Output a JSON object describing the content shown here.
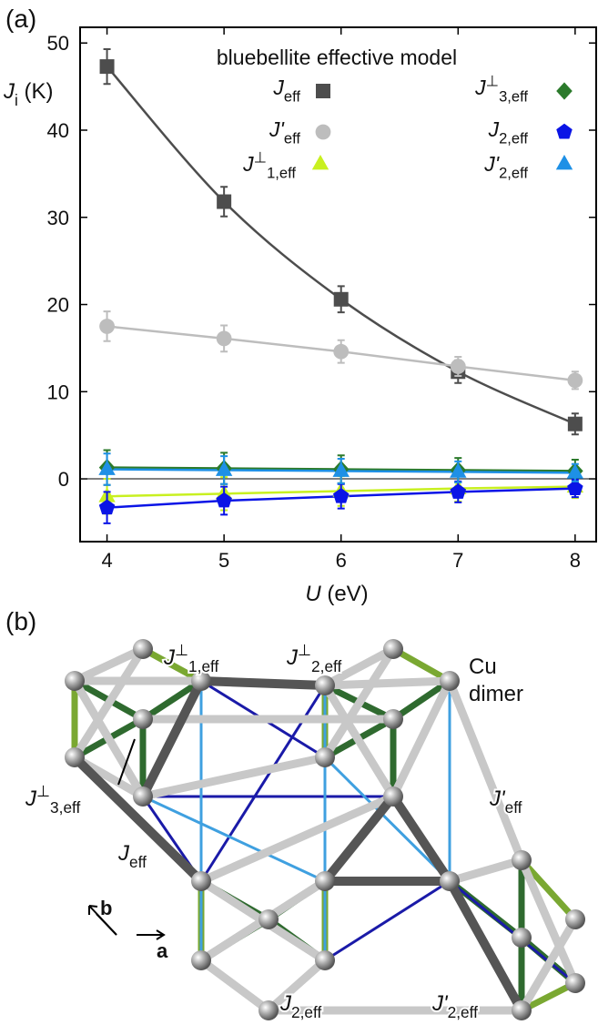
{
  "chart_data": {
    "type": "line",
    "panel_label": "(a)",
    "title": "bluebellite effective model",
    "xlabel": {
      "base": "U",
      "rest": " (eV)"
    },
    "ylabel": {
      "base": "J",
      "sub": "i",
      "rest": " (K)"
    },
    "x": [
      4,
      5,
      6,
      7,
      8
    ],
    "xlim": [
      3.77,
      8.18
    ],
    "ylim": [
      -7.2,
      51.8
    ],
    "xticks": [
      4,
      5,
      6,
      7,
      8
    ],
    "yticks": [
      0,
      10,
      20,
      30,
      40,
      50
    ],
    "zero_line": true,
    "series": [
      {
        "name": {
          "base": "J",
          "sub": "eff"
        },
        "color": "#4d4d4d",
        "marker": "square",
        "smooth": true,
        "values": [
          47.3,
          31.8,
          20.6,
          12.3,
          6.3
        ],
        "errors": [
          2.0,
          1.7,
          1.5,
          1.3,
          1.2
        ]
      },
      {
        "name": {
          "base": "J'",
          "sub": "eff"
        },
        "color": "#bdbdbd",
        "marker": "circle",
        "smooth": false,
        "values": [
          17.5,
          16.1,
          14.6,
          12.9,
          11.3
        ],
        "errors": [
          1.7,
          1.5,
          1.3,
          1.1,
          1.0
        ]
      },
      {
        "name": {
          "base": "J",
          "sup": "⊥",
          "sub": "1,eff"
        },
        "color": "#c8f020",
        "marker": "triangle",
        "smooth": false,
        "values": [
          -2.0,
          -1.7,
          -1.4,
          -1.1,
          -0.9
        ],
        "errors": [
          2.0,
          1.9,
          1.7,
          1.5,
          1.3
        ]
      },
      {
        "name": {
          "base": "J",
          "sup": "⊥",
          "sub": "3,eff"
        },
        "color": "#2b7a2b",
        "marker": "diamond",
        "smooth": false,
        "values": [
          1.3,
          1.2,
          1.1,
          1.0,
          0.9
        ],
        "errors": [
          2.0,
          1.8,
          1.6,
          1.4,
          1.3
        ]
      },
      {
        "name": {
          "base": "J",
          "sub": "2,eff"
        },
        "color": "#0a14e6",
        "marker": "pentagon",
        "smooth": false,
        "values": [
          -3.3,
          -2.5,
          -2.0,
          -1.5,
          -1.1
        ],
        "errors": [
          1.8,
          1.6,
          1.4,
          1.2,
          1.0
        ]
      },
      {
        "name": {
          "base": "J'",
          "sub": "2,eff"
        },
        "color": "#1e90e6",
        "marker": "triangle",
        "smooth": false,
        "values": [
          1.1,
          1.0,
          0.9,
          0.8,
          0.7
        ],
        "errors": [
          1.8,
          1.6,
          1.4,
          1.2,
          1.0
        ]
      }
    ]
  },
  "diagram": {
    "panel_label": "(b)",
    "labels": [
      {
        "base": "J",
        "sup": "⊥",
        "sub": "1,eff"
      },
      {
        "base": "J",
        "sup": "⊥",
        "sub": "2,eff"
      },
      {
        "base": "J",
        "sup": "⊥",
        "sub": "3,eff"
      },
      {
        "base": "J'",
        "sub": "eff"
      },
      {
        "base": "J",
        "sub": "eff"
      },
      {
        "base": "J",
        "sub": "2,eff"
      },
      {
        "base": "J'",
        "sub": "2,eff"
      }
    ],
    "cu": "Cu",
    "dimer": "dimer",
    "axis_a": "a",
    "axis_b": "b"
  }
}
